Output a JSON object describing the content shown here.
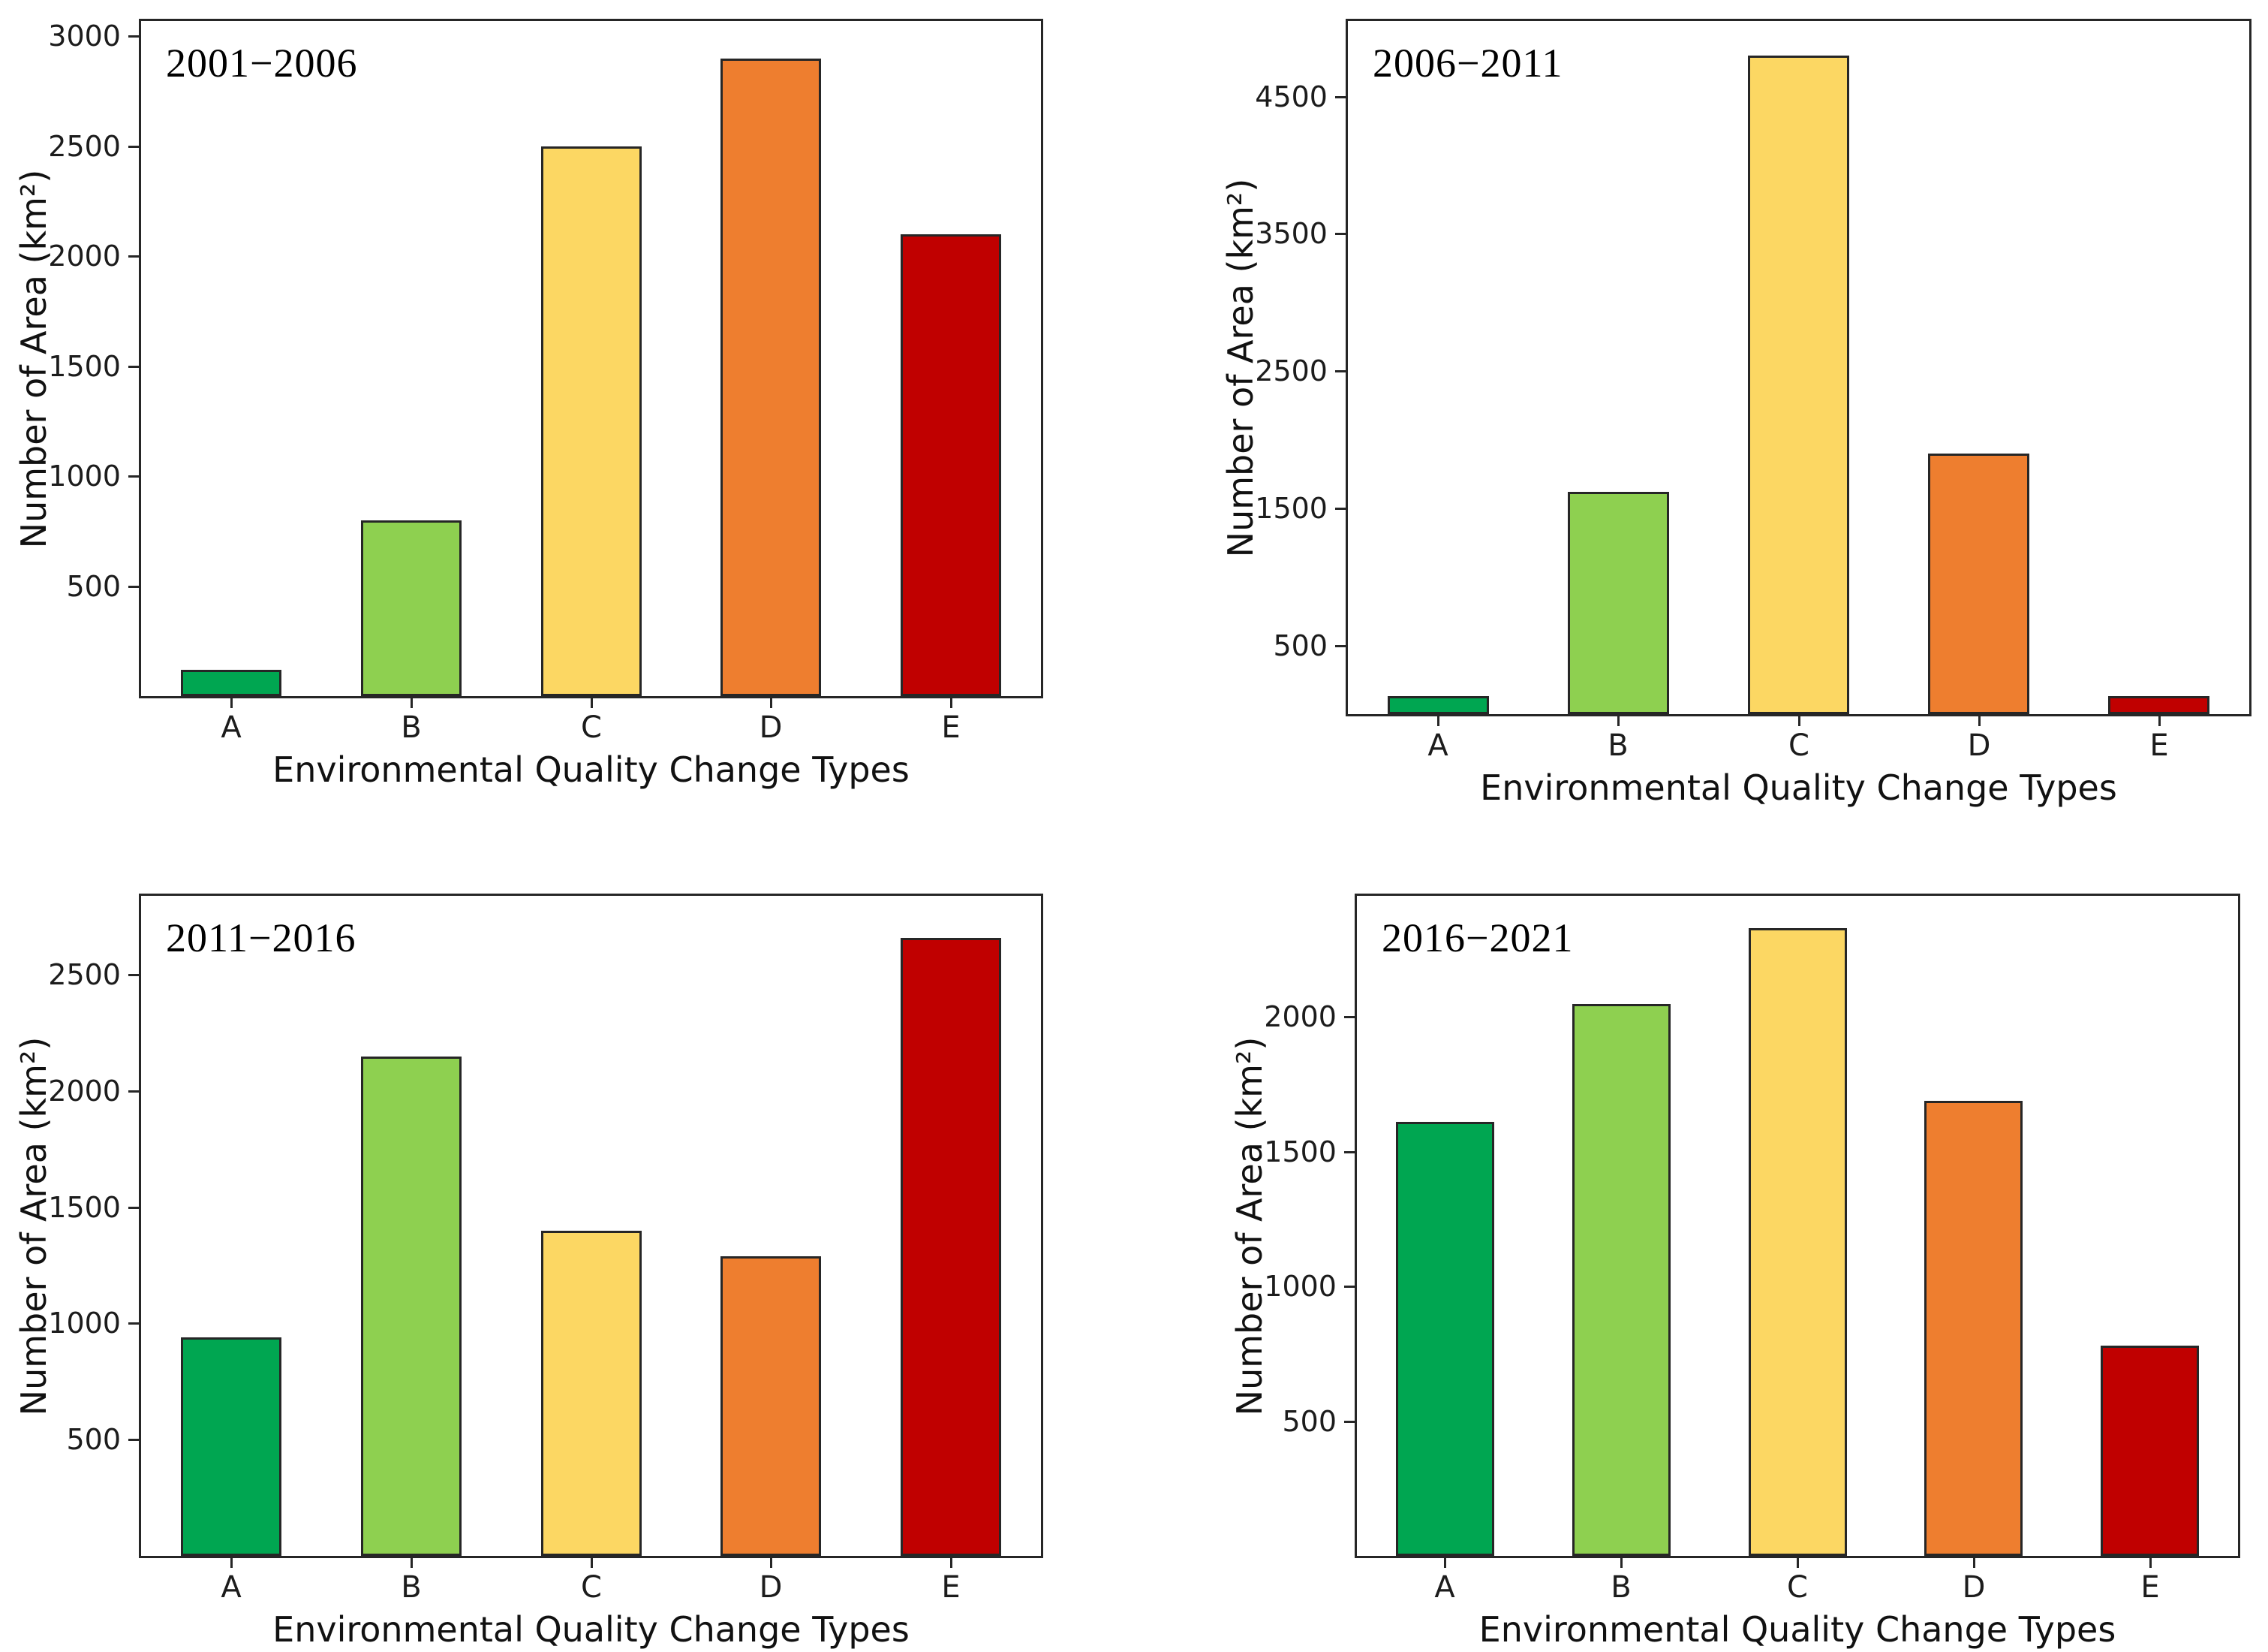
{
  "figure": {
    "background": "#ffffff",
    "frame_color": "#262626",
    "bar_edge_color": "#262626"
  },
  "chart_data": [
    {
      "type": "bar",
      "title": "2001−2006",
      "categories": [
        "A",
        "B",
        "C",
        "D",
        "E"
      ],
      "values": [
        120,
        800,
        2500,
        2900,
        2100
      ],
      "bar_colors": [
        "#00a651",
        "#8ed050",
        "#fcd763",
        "#ee7e2f",
        "#c00000"
      ],
      "xlabel": "Environmental Quality Change Types",
      "ylabel": "Number of Area (km²)",
      "ylim": [
        0,
        3070
      ],
      "yticks": [
        500,
        1000,
        1500,
        2000,
        2500,
        3000
      ],
      "grid": false,
      "legend": false
    },
    {
      "type": "bar",
      "title": "2006−2011",
      "categories": [
        "A",
        "B",
        "C",
        "D",
        "E"
      ],
      "values": [
        130,
        1620,
        4800,
        1900,
        130
      ],
      "bar_colors": [
        "#00a651",
        "#8ed050",
        "#fcd763",
        "#ee7e2f",
        "#c00000"
      ],
      "xlabel": "Environmental Quality Change Types",
      "ylabel": "Number of Area (km²)",
      "ylim": [
        0,
        5050
      ],
      "yticks": [
        500,
        1500,
        2500,
        3500,
        4500
      ],
      "grid": false,
      "legend": false
    },
    {
      "type": "bar",
      "title": "2011−2016",
      "categories": [
        "A",
        "B",
        "C",
        "D",
        "E"
      ],
      "values": [
        940,
        2150,
        1400,
        1290,
        2660
      ],
      "bar_colors": [
        "#00a651",
        "#8ed050",
        "#fcd763",
        "#ee7e2f",
        "#c00000"
      ],
      "xlabel": "Environmental Quality Change Types",
      "ylabel": "Number of Area (km²)",
      "ylim": [
        0,
        2840
      ],
      "yticks": [
        500,
        1000,
        1500,
        2000,
        2500
      ],
      "grid": false,
      "legend": false
    },
    {
      "type": "bar",
      "title": "2016−2021",
      "categories": [
        "A",
        "B",
        "C",
        "D",
        "E"
      ],
      "values": [
        1610,
        2050,
        2330,
        1690,
        780
      ],
      "bar_colors": [
        "#00a651",
        "#8ed050",
        "#fcd763",
        "#ee7e2f",
        "#c00000"
      ],
      "xlabel": "Environmental Quality Change Types",
      "ylabel": "Number of Area (km²)",
      "ylim": [
        0,
        2450
      ],
      "yticks": [
        500,
        1000,
        1500,
        2000
      ],
      "grid": false,
      "legend": false
    }
  ]
}
